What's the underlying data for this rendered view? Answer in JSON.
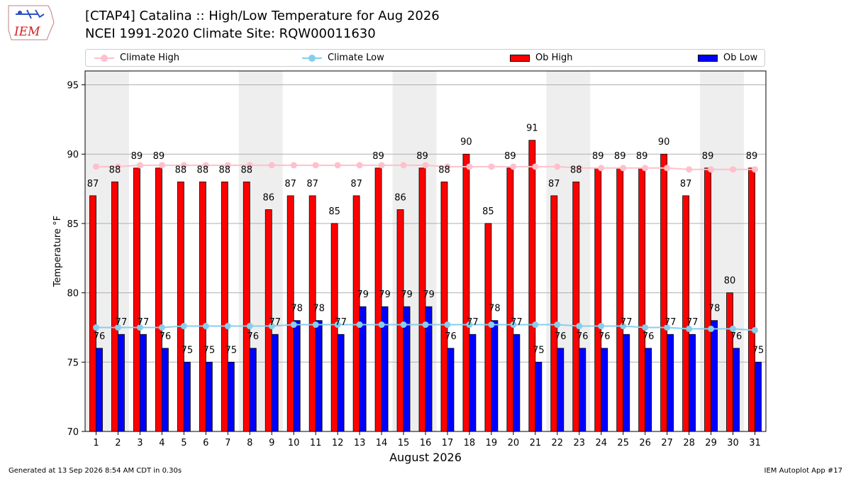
{
  "header": {
    "logo_text": "IEM",
    "title_line1": "[CTAP4] Catalina :: High/Low Temperature for Aug 2026",
    "title_line2": "NCEI 1991-2020 Climate Site: RQW00011630"
  },
  "legend": {
    "position": "top, spanning full width",
    "items": [
      {
        "label": "Climate High",
        "kind": "line-marker",
        "color": "#ffc0cb"
      },
      {
        "label": "Climate Low",
        "kind": "line-marker",
        "color": "#87ceeb"
      },
      {
        "label": "Ob High",
        "kind": "bar",
        "color": "#ff0000"
      },
      {
        "label": "Ob Low",
        "kind": "bar",
        "color": "#0000ff"
      }
    ]
  },
  "footer": {
    "left": "Generated at 13 Sep 2026 8:54 AM CDT in 0.30s",
    "right": "IEM Autoplot App #17"
  },
  "colors": {
    "ob_high": "#ff0000",
    "ob_low": "#0000ff",
    "climate_high": "#ffc0cb",
    "climate_low": "#87ceeb",
    "weekend_shade": "#eeeeee",
    "grid": "#b0b0b0"
  },
  "chart_data": {
    "type": "bar",
    "xlabel": "August 2026",
    "ylabel": "Temperature °F",
    "ylim": [
      70,
      96
    ],
    "yticks": [
      70,
      75,
      80,
      85,
      90,
      95
    ],
    "grid": "horizontal lines on",
    "shaded_day_pairs": [
      [
        1,
        2
      ],
      [
        8,
        9
      ],
      [
        15,
        16
      ],
      [
        22,
        23
      ],
      [
        29,
        30
      ]
    ],
    "categories": [
      "1",
      "2",
      "3",
      "4",
      "5",
      "6",
      "7",
      "8",
      "9",
      "10",
      "11",
      "12",
      "13",
      "14",
      "15",
      "16",
      "17",
      "18",
      "19",
      "20",
      "21",
      "22",
      "23",
      "24",
      "25",
      "26",
      "27",
      "28",
      "29",
      "30",
      "31"
    ],
    "series": [
      {
        "name": "Ob High",
        "kind": "bar",
        "values": [
          87,
          88,
          89,
          89,
          88,
          88,
          88,
          88,
          86,
          87,
          87,
          85,
          87,
          89,
          86,
          89,
          88,
          90,
          85,
          89,
          91,
          87,
          88,
          89,
          89,
          89,
          90,
          87,
          89,
          80,
          89
        ]
      },
      {
        "name": "Ob Low",
        "kind": "bar",
        "values": [
          76,
          77,
          77,
          76,
          75,
          75,
          75,
          76,
          77,
          78,
          78,
          77,
          79,
          79,
          79,
          79,
          76,
          77,
          78,
          77,
          75,
          76,
          76,
          76,
          77,
          76,
          77,
          77,
          78,
          76,
          75
        ]
      },
      {
        "name": "Climate High",
        "kind": "line",
        "values": [
          89.1,
          89.1,
          89.2,
          89.2,
          89.2,
          89.2,
          89.2,
          89.2,
          89.2,
          89.2,
          89.2,
          89.2,
          89.2,
          89.2,
          89.2,
          89.2,
          89.1,
          89.1,
          89.1,
          89.1,
          89.1,
          89.1,
          89.0,
          89.0,
          89.0,
          89.0,
          89.0,
          88.9,
          88.9,
          88.9,
          88.9
        ]
      },
      {
        "name": "Climate Low",
        "kind": "line",
        "values": [
          77.5,
          77.5,
          77.5,
          77.5,
          77.6,
          77.6,
          77.6,
          77.6,
          77.6,
          77.7,
          77.7,
          77.7,
          77.7,
          77.7,
          77.7,
          77.7,
          77.7,
          77.7,
          77.7,
          77.7,
          77.7,
          77.7,
          77.6,
          77.6,
          77.6,
          77.5,
          77.5,
          77.4,
          77.4,
          77.4,
          77.3
        ]
      }
    ]
  }
}
